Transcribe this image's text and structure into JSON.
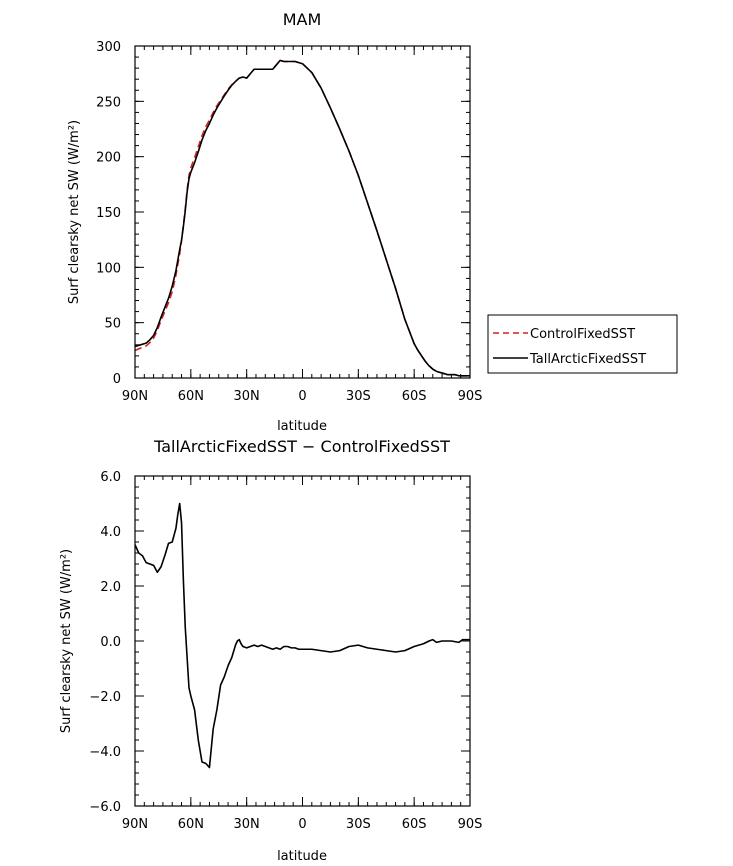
{
  "chart_data": [
    {
      "type": "line",
      "title": "MAM",
      "xlabel": "latitude",
      "ylabel": "Surf clearsky net SW (W/m²)",
      "xlim": [
        90,
        -90
      ],
      "ylim": [
        0,
        300
      ],
      "x_tick_values": [
        90,
        60,
        30,
        0,
        -30,
        -60,
        -90
      ],
      "x_tick_labels": [
        "90N",
        "60N",
        "30N",
        "0",
        "30S",
        "60S",
        "90S"
      ],
      "y_tick_values": [
        0,
        50,
        100,
        150,
        200,
        250,
        300
      ],
      "y_tick_labels": [
        "0",
        "50",
        "100",
        "150",
        "200",
        "250",
        "300"
      ],
      "legend": {
        "placement": "outside-right"
      },
      "series": [
        {
          "name": "ControlFixedSST",
          "color": "#d42020",
          "style": "dashed",
          "x": [
            90,
            87,
            84,
            82,
            80,
            78,
            76,
            74,
            72,
            70,
            68,
            66,
            65,
            64,
            63,
            62,
            61,
            60,
            58,
            56,
            54,
            52,
            50,
            48,
            46,
            44,
            42,
            40,
            38,
            36,
            34,
            32,
            30,
            28,
            26,
            24,
            22,
            20,
            18,
            16,
            14,
            12,
            10,
            8,
            6,
            4,
            2,
            0,
            -5,
            -10,
            -15,
            -20,
            -25,
            -30,
            -35,
            -40,
            -45,
            -50,
            -55,
            -60,
            -62,
            -64,
            -66,
            -68,
            -70,
            -72,
            -74,
            -76,
            -78,
            -80,
            -82,
            -84,
            -86,
            -88,
            -90
          ],
          "y": [
            25,
            27,
            29,
            32,
            36,
            43,
            52,
            60,
            68,
            78,
            93,
            112,
            124,
            138,
            153,
            170,
            183,
            190,
            199,
            209,
            219,
            227,
            233,
            240,
            246,
            251,
            256,
            261,
            265,
            268,
            271,
            272,
            271,
            275,
            279,
            279,
            279,
            279,
            279,
            279,
            283,
            287,
            286,
            286,
            286,
            286,
            285,
            284,
            276,
            262,
            244,
            225,
            205,
            183,
            158,
            133,
            107,
            81,
            53,
            31,
            25,
            20,
            15,
            11,
            8,
            6,
            5,
            4,
            3,
            3,
            3,
            2,
            2,
            2,
            2
          ]
        },
        {
          "name": "TallArcticFixedSST",
          "color": "#000000",
          "style": "solid",
          "x": [
            90,
            87,
            84,
            82,
            80,
            78,
            76,
            74,
            72,
            70,
            68,
            66,
            65,
            64,
            63,
            62,
            61,
            60,
            58,
            56,
            54,
            52,
            50,
            48,
            46,
            44,
            42,
            40,
            38,
            36,
            34,
            32,
            30,
            28,
            26,
            24,
            22,
            20,
            18,
            16,
            14,
            12,
            10,
            8,
            6,
            4,
            2,
            0,
            -5,
            -10,
            -15,
            -20,
            -25,
            -30,
            -35,
            -40,
            -45,
            -50,
            -55,
            -60,
            -62,
            -64,
            -66,
            -68,
            -70,
            -72,
            -74,
            -76,
            -78,
            -80,
            -82,
            -84,
            -86,
            -88,
            -90
          ],
          "y": [
            28.5,
            30,
            31.5,
            34.5,
            38.5,
            45.5,
            55,
            63.5,
            72,
            83,
            97,
            116,
            124.5,
            137,
            151,
            168,
            180,
            186,
            194.5,
            204.5,
            215,
            223.5,
            230,
            237.5,
            244,
            249.5,
            255,
            260,
            264.5,
            268,
            271,
            272,
            271,
            275,
            279,
            279,
            279,
            279,
            279,
            279,
            283,
            287,
            286,
            286,
            286,
            286,
            285,
            284,
            276,
            262,
            244,
            225,
            205,
            183,
            158,
            133,
            107,
            81,
            53,
            31,
            25,
            20,
            15,
            11,
            8,
            6,
            5,
            4,
            3,
            3,
            3,
            2,
            2,
            2,
            2
          ]
        }
      ]
    },
    {
      "type": "line",
      "title": "TallArcticFixedSST − ControlFixedSST",
      "xlabel": "latitude",
      "ylabel": "Surf clearsky net SW (W/m²)",
      "xlim": [
        90,
        -90
      ],
      "ylim": [
        -6,
        6
      ],
      "x_tick_values": [
        90,
        60,
        30,
        0,
        -30,
        -60,
        -90
      ],
      "x_tick_labels": [
        "90N",
        "60N",
        "30N",
        "0",
        "30S",
        "60S",
        "90S"
      ],
      "y_tick_values": [
        -6,
        -4,
        -2,
        0,
        2,
        4,
        6
      ],
      "y_tick_labels": [
        "−6.0",
        "−4.0",
        "−2.0",
        "0.0",
        "2.0",
        "4.0",
        "6.0"
      ],
      "series": [
        {
          "color": "#000000",
          "style": "solid",
          "x": [
            90,
            88,
            86,
            84,
            82,
            80,
            78,
            76,
            74,
            72,
            70,
            68,
            67,
            66,
            65,
            64,
            63,
            62,
            61,
            60,
            58,
            56,
            54,
            52,
            50,
            48,
            46,
            44,
            42,
            40,
            38,
            36,
            35,
            34,
            33,
            32,
            30,
            28,
            26,
            24,
            22,
            20,
            18,
            16,
            14,
            12,
            10,
            8,
            6,
            4,
            2,
            0,
            -5,
            -10,
            -15,
            -20,
            -25,
            -30,
            -35,
            -40,
            -45,
            -50,
            -55,
            -60,
            -65,
            -68,
            -70,
            -72,
            -75,
            -80,
            -84,
            -86,
            -88,
            -90
          ],
          "y": [
            3.5,
            3.2,
            3.1,
            2.85,
            2.8,
            2.75,
            2.5,
            2.7,
            3.1,
            3.55,
            3.6,
            4.1,
            4.6,
            5.0,
            4.3,
            2.2,
            0.5,
            -0.6,
            -1.7,
            -2.0,
            -2.5,
            -3.6,
            -4.4,
            -4.45,
            -4.6,
            -3.2,
            -2.5,
            -1.6,
            -1.3,
            -0.9,
            -0.6,
            -0.15,
            0.0,
            0.05,
            -0.1,
            -0.2,
            -0.25,
            -0.2,
            -0.15,
            -0.2,
            -0.15,
            -0.2,
            -0.25,
            -0.3,
            -0.25,
            -0.3,
            -0.2,
            -0.2,
            -0.25,
            -0.25,
            -0.3,
            -0.3,
            -0.3,
            -0.35,
            -0.4,
            -0.35,
            -0.2,
            -0.15,
            -0.25,
            -0.3,
            -0.35,
            -0.4,
            -0.35,
            -0.2,
            -0.1,
            0.0,
            0.05,
            -0.05,
            0.0,
            0.0,
            -0.05,
            0.05,
            0.05,
            0.05
          ]
        }
      ]
    }
  ]
}
